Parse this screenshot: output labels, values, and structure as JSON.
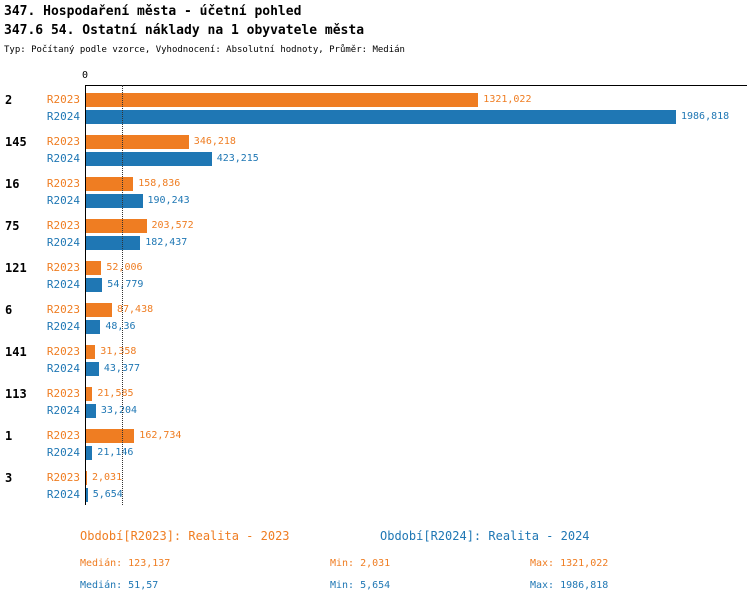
{
  "header": {
    "title": "347. Hospodaření města - účetní pohled",
    "subtitle": "347.6 54. Ostatní náklady na 1 obyvatele města",
    "meta": "Typ: Počítaný podle vzorce, Vyhodnocení: Absolutní hodnoty, Průměr: Medián"
  },
  "chart_data": {
    "type": "bar",
    "orientation": "horizontal",
    "grid": false,
    "x_axis": {
      "zero_label": "0",
      "max_value": 1986.818
    },
    "median_line": {
      "value": 123.137,
      "style": "dotted"
    },
    "categories": [
      "2",
      "145",
      "16",
      "75",
      "121",
      "6",
      "141",
      "113",
      "1",
      "3"
    ],
    "series": [
      {
        "name": "R2023",
        "color": "#EF7D22",
        "values": [
          1321.022,
          346.218,
          158.836,
          203.572,
          52.006,
          87.438,
          31.358,
          21.585,
          162.734,
          2.031
        ],
        "value_labels": [
          "1321,022",
          "346,218",
          "158,836",
          "203,572",
          "52,006",
          "87,438",
          "31,358",
          "21,585",
          "162,734",
          "2,031"
        ]
      },
      {
        "name": "R2024",
        "color": "#1F77B4",
        "values": [
          1986.818,
          423.215,
          190.243,
          182.437,
          54.779,
          48.36,
          43.377,
          33.204,
          21.146,
          5.654
        ],
        "value_labels": [
          "1986,818",
          "423,215",
          "190,243",
          "182,437",
          "54,779",
          "48,36",
          "43,377",
          "33,204",
          "21,146",
          "5,654"
        ]
      }
    ]
  },
  "legend": {
    "r2023": {
      "period": "Období[R2023]: Realita - 2023",
      "median": "Medián: 123,137",
      "min": "Min: 2,031",
      "max": "Max: 1321,022",
      "color": "#EF7D22"
    },
    "r2024": {
      "period": "Období[R2024]: Realita - 2024",
      "median": "Medián: 51,57",
      "min": "Min: 5,654",
      "max": "Max: 1986,818",
      "color": "#1F77B4"
    }
  }
}
